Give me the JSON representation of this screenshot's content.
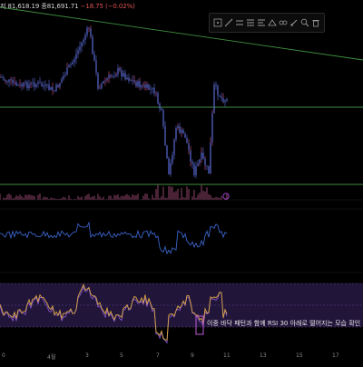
{
  "legend": {
    "prefix": "저",
    "low_value": "81,618.19",
    "close_label": "종",
    "close_value": "81,691.71",
    "change": "−18.75",
    "change_pct": "(−0.02%)"
  },
  "toolbar": {
    "tools": [
      "cursor-icon",
      "trend-line-icon",
      "horizontal-line-icon",
      "fib-icon",
      "text-icon",
      "measure-icon",
      "pattern-icon",
      "brush-icon",
      "zoom-icon",
      "trash-icon"
    ]
  },
  "annotation": {
    "text": "이중 바닥 패턴과 함께 RSI 30 아래로 떨어지는 모습 확인"
  },
  "x_axis": {
    "ticks": [
      "0",
      "4월",
      "3",
      "5",
      "7",
      "9",
      "11",
      "13",
      "15",
      "17"
    ],
    "highlighted": "9"
  },
  "colors": {
    "background": "#000000",
    "trendline": "#3f8f3f",
    "support_line": "#3f8f3f",
    "candles": "#5a6bd6",
    "wick_highlight": "#d85a9a",
    "volume": "#7a3a5a",
    "indicator_line": "#3a63c8",
    "rsi_band": "#22153a",
    "rsi_line": "#d8a640",
    "rsi_signal": "#8c5ad8"
  }
}
